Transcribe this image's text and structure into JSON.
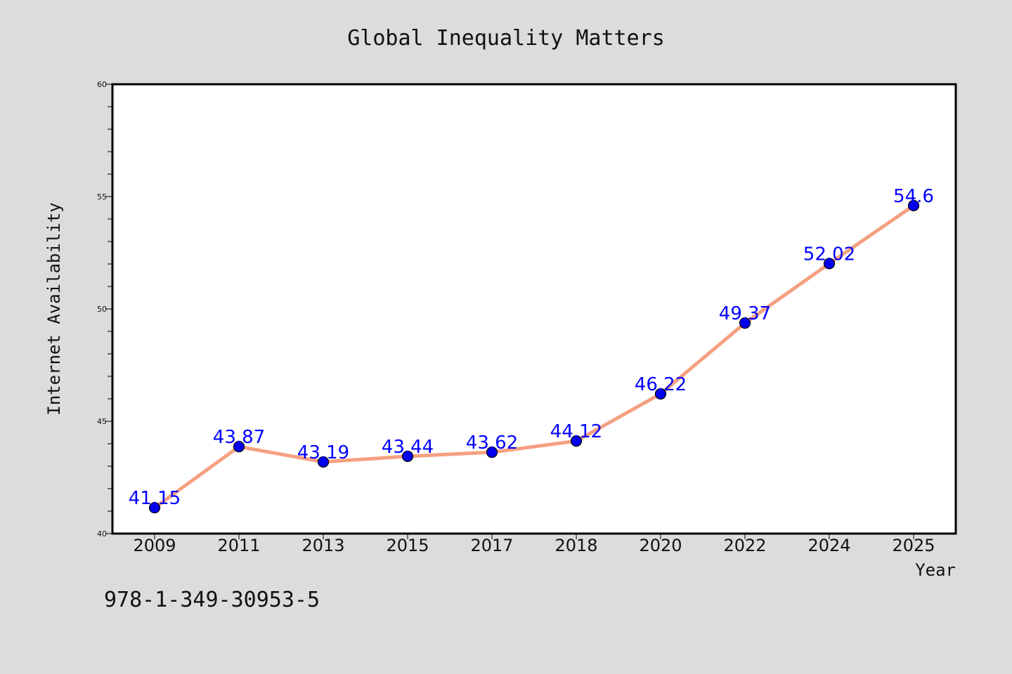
{
  "chart_data": {
    "type": "line",
    "title": "Global Inequality Matters",
    "xlabel": "Year",
    "ylabel": "Internet Availability",
    "categories": [
      "2009",
      "2011",
      "2013",
      "2015",
      "2017",
      "2018",
      "2020",
      "2022",
      "2024",
      "2025"
    ],
    "series": [
      {
        "values": [
          41.15,
          43.87,
          43.19,
          43.44,
          43.62,
          44.12,
          46.22,
          49.37,
          52.02,
          54.6
        ],
        "labels": [
          "41.15",
          "43.87",
          "43.19",
          "43.44",
          "43.62",
          "44.12",
          "46.22",
          "49.37",
          "52.02",
          "54.6"
        ],
        "line_color": "#f4a081",
        "marker_color": "#0000ee"
      }
    ],
    "ylim": [
      40,
      60
    ],
    "yticks": [
      "40",
      "45",
      "50",
      "55",
      "60"
    ],
    "grid": false,
    "legend": "none"
  },
  "annotation": "978-1-349-30953-5",
  "colors": {
    "background": "#dcdcdc",
    "plot_background": "#ffffff",
    "label_color": "#0000ff"
  }
}
